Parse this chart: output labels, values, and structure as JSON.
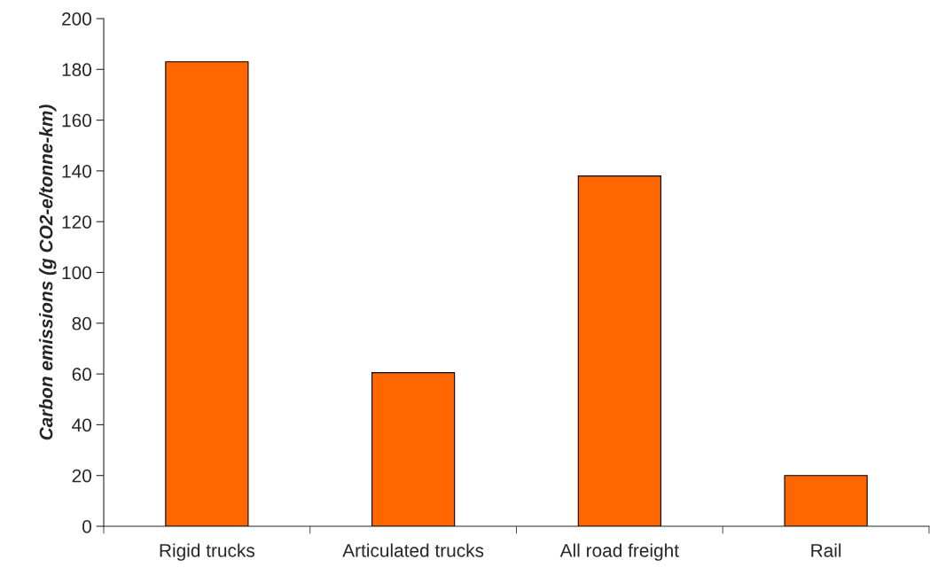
{
  "chart_data": {
    "type": "bar",
    "ylabel": "Carbon emissions (g CO2-e/tonne-km)",
    "categories": [
      "Rigid trucks",
      "Articulated trucks",
      "All road freight",
      "Rail"
    ],
    "values": [
      183,
      60.5,
      138,
      20
    ],
    "color": "#ff6600",
    "ylim": [
      0,
      200
    ],
    "yticks": [
      0,
      20,
      40,
      60,
      80,
      100,
      120,
      140,
      160,
      180,
      200
    ],
    "grid": false
  }
}
